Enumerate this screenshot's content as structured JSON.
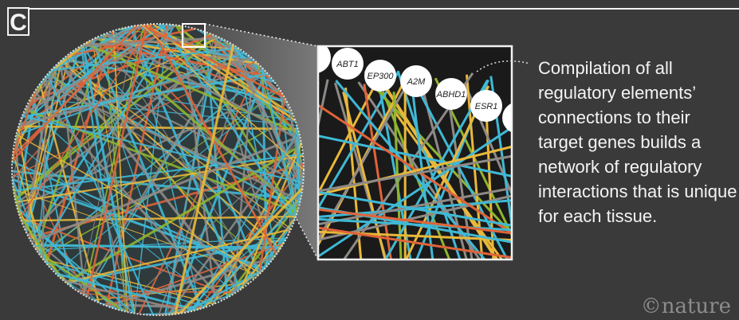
{
  "panel_label": "C",
  "caption": "Compilation of all regulatory elements’ connections to their target genes builds a network of regulatory interactions that is unique for each tissue.",
  "credit": "©nature",
  "zoom_genes": [
    "ABT1",
    "EP300",
    "A2M",
    "ABHD1",
    "ESR1"
  ],
  "colors": {
    "background": "#3a3a3a",
    "edge_cyan": "#3fb9d6",
    "edge_yellow": "#e9b83a",
    "edge_orange": "#e0643a",
    "edge_green": "#8fb52e",
    "edge_gray": "#8e8a86",
    "text": "#f4f4f4"
  }
}
